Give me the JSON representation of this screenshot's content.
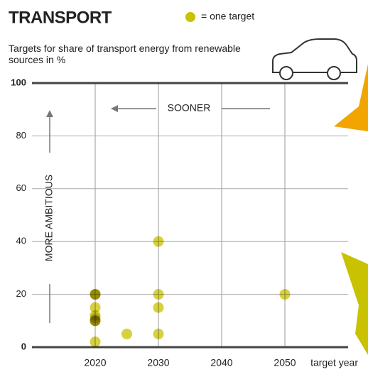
{
  "chart_data": {
    "type": "scatter",
    "title": "TRANSPORT",
    "subtitle": "Targets for share of transport energy from renewable sources in %",
    "legend_label": "= one target",
    "x_label": "target year",
    "annotations": [
      "SOONER",
      "MORE AMBITIOUS"
    ],
    "color": "#c8c200",
    "x": [
      2020,
      2020,
      2020,
      2020,
      2020,
      2020,
      2020,
      2020,
      2020,
      2020,
      2025,
      2030,
      2030,
      2030,
      2030,
      2050
    ],
    "values": [
      20,
      20,
      20,
      15,
      12,
      11,
      10,
      10,
      10,
      2,
      5,
      40,
      20,
      15,
      5,
      20
    ],
    "xlim": [
      2010,
      2060
    ],
    "xticks": [
      2020,
      2030,
      2040,
      2050
    ],
    "ylim": [
      0,
      100
    ],
    "yticks": [
      0,
      20,
      40,
      60,
      80,
      100
    ],
    "grid": true
  }
}
